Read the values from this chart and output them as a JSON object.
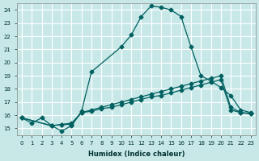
{
  "xlabel": "Humidex (Indice chaleur)",
  "bg_color": "#c8e8e8",
  "grid_color": "#ffffff",
  "line_color": "#006060",
  "xlim": [
    -0.5,
    23.5
  ],
  "ylim": [
    14.5,
    24.5
  ],
  "yticks": [
    15,
    16,
    17,
    18,
    19,
    20,
    21,
    22,
    23,
    24
  ],
  "xticks": [
    0,
    1,
    2,
    3,
    4,
    5,
    6,
    7,
    8,
    9,
    10,
    11,
    12,
    13,
    14,
    15,
    16,
    17,
    18,
    19,
    20,
    21,
    22,
    23
  ],
  "curve1_x": [
    0,
    1,
    2,
    3,
    4,
    5,
    6,
    7,
    10,
    11,
    12,
    13,
    14,
    15,
    16,
    17,
    18,
    19,
    20,
    21,
    22,
    23
  ],
  "curve1_y": [
    15.8,
    15.4,
    15.8,
    15.2,
    14.8,
    15.2,
    16.3,
    19.3,
    21.2,
    22.1,
    23.5,
    24.3,
    24.2,
    24.0,
    23.5,
    21.2,
    19.0,
    18.6,
    18.1,
    17.5,
    16.4,
    16.2
  ],
  "curve2_x": [
    0,
    3,
    4,
    5,
    6,
    7,
    8,
    9,
    10,
    11,
    12,
    13,
    14,
    15,
    16,
    17,
    18,
    19,
    20,
    21,
    22,
    23
  ],
  "curve2_y": [
    15.8,
    15.2,
    15.3,
    15.3,
    16.2,
    16.3,
    16.5,
    16.6,
    16.8,
    17.0,
    17.2,
    17.4,
    17.5,
    17.7,
    17.9,
    18.1,
    18.3,
    18.5,
    18.7,
    16.4,
    16.2,
    16.1
  ],
  "curve3_x": [
    0,
    3,
    4,
    5,
    6,
    7,
    8,
    9,
    10,
    11,
    12,
    13,
    14,
    15,
    16,
    17,
    18,
    19,
    20,
    21,
    22,
    23
  ],
  "curve3_y": [
    15.8,
    15.2,
    15.3,
    15.4,
    16.2,
    16.4,
    16.6,
    16.8,
    17.0,
    17.2,
    17.4,
    17.6,
    17.8,
    18.0,
    18.2,
    18.4,
    18.6,
    18.8,
    19.0,
    16.6,
    16.2,
    16.15
  ]
}
